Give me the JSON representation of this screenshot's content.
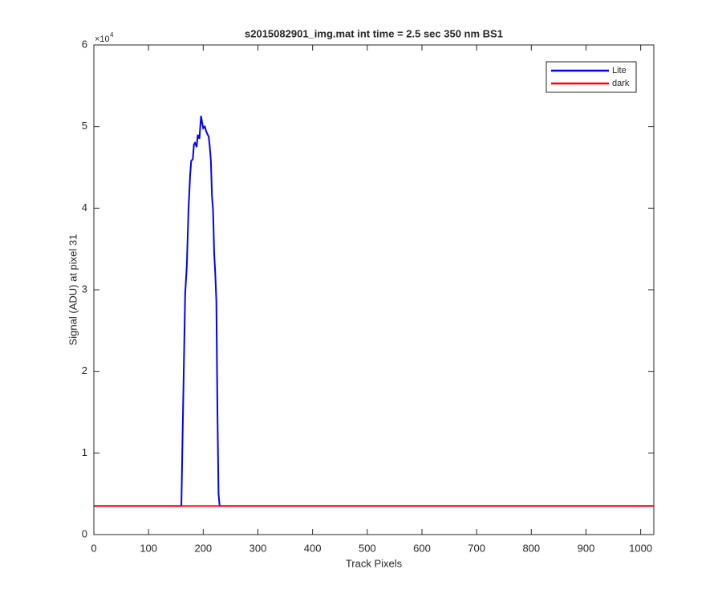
{
  "chart_data": {
    "type": "line",
    "title": "s2015082901_img.mat int time = 2.5 sec  350 nm BS1",
    "x_label": "Track Pixels",
    "y_label": "Signal (ADU) at pixel 31",
    "y_multiplier": "×10",
    "y_multiplier_exponent": "4",
    "xlim": [
      0,
      1024
    ],
    "xticks": [
      0,
      100,
      200,
      300,
      400,
      500,
      600,
      700,
      800,
      900,
      1000
    ],
    "ylim": [
      0,
      60000
    ],
    "yticks": [
      {
        "value": 0,
        "label": "0"
      },
      {
        "value": 10000,
        "label": "1"
      },
      {
        "value": 20000,
        "label": "2"
      },
      {
        "value": 30000,
        "label": "3"
      },
      {
        "value": 40000,
        "label": "4"
      },
      {
        "value": 50000,
        "label": "5"
      },
      {
        "value": 60000,
        "label": "6"
      }
    ],
    "grid": false,
    "legend": "upper-right",
    "series": [
      {
        "name": "Lite",
        "color": "#0000ff",
        "x": [
          0,
          160,
          163,
          167,
          170,
          173,
          176,
          178,
          181,
          183,
          185,
          188,
          190,
          193,
          196,
          198,
          200,
          203,
          205,
          208,
          210,
          212,
          214,
          216,
          218,
          220,
          222,
          224,
          226,
          228,
          230,
          1023
        ],
        "values": [
          3500,
          3500,
          15000,
          29500,
          33000,
          39700,
          44000,
          45800,
          46000,
          47800,
          48000,
          47500,
          49000,
          48500,
          51300,
          50500,
          49800,
          50000,
          49500,
          49000,
          48800,
          47500,
          45800,
          41500,
          39700,
          34500,
          32000,
          28600,
          15000,
          5000,
          3500,
          3500
        ]
      },
      {
        "name": "dark",
        "color": "#ff0000",
        "x": [
          0,
          1023
        ],
        "values": [
          3500,
          3500
        ]
      }
    ]
  }
}
